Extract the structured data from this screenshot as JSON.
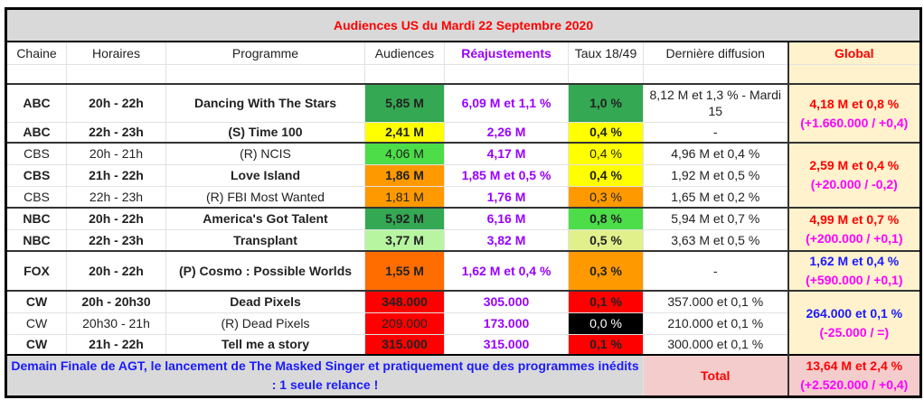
{
  "title": "Audiences US du Mardi 22 Septembre 2020",
  "headers": {
    "chaine": "Chaine",
    "horaires": "Horaires",
    "programme": "Programme",
    "audiences": "Audiences",
    "reajustements": "Réajustements",
    "taux": "Taux 18/49",
    "derniere": "Dernière diffusion",
    "global": "Global"
  },
  "rows": [
    {
      "chaine": "ABC",
      "horaires": "20h - 22h",
      "programme": "Dancing With The Stars",
      "audience": "5,85 M",
      "reajust": "6,09 M et 1,1 %",
      "taux": "1,0 %",
      "derniere": "8,12 M et 1,3 % - Mardi 15",
      "bold": true,
      "aud_color": "#34a853",
      "taux_color": "#34a853"
    },
    {
      "chaine": "ABC",
      "horaires": "22h - 23h",
      "programme": "(S) Time 100",
      "audience": "2,41 M",
      "reajust": "2,26 M",
      "taux": "0,4 %",
      "derniere": "-",
      "bold": true,
      "aud_color": "#ffff00",
      "taux_color": "#ffff00"
    },
    {
      "chaine": "CBS",
      "horaires": "20h - 21h",
      "programme": "(R) NCIS",
      "audience": "4,06 M",
      "reajust": "4,17 M",
      "taux": "0,4 %",
      "derniere": "4,96 M et 0,4 %",
      "bold": false,
      "aud_color": "#4cdd48",
      "taux_color": "#ffff00"
    },
    {
      "chaine": "CBS",
      "horaires": "21h - 22h",
      "programme": "Love Island",
      "audience": "1,86 M",
      "reajust": "1,85 M et 0,5 %",
      "taux": "0,4 %",
      "derniere": "1,92 M et 0,5 %",
      "bold": true,
      "aud_color": "#ff9900",
      "taux_color": "#ffff00"
    },
    {
      "chaine": "CBS",
      "horaires": "22h - 23h",
      "programme": "(R) FBI Most Wanted",
      "audience": "1,81 M",
      "reajust": "1,76 M",
      "taux": "0,3 %",
      "derniere": "1,65 M et 0,2 %",
      "bold": false,
      "aud_color": "#ff9900",
      "taux_color": "#ff9900"
    },
    {
      "chaine": "NBC",
      "horaires": "20h - 22h",
      "programme": "America's Got Talent",
      "audience": "5,92 M",
      "reajust": "6,16 M",
      "taux": "0,8 %",
      "derniere": "5,94 M et 0,7 %",
      "bold": true,
      "aud_color": "#34a853",
      "taux_color": "#4cdd48"
    },
    {
      "chaine": "NBC",
      "horaires": "22h - 23h",
      "programme": "Transplant",
      "audience": "3,77 M",
      "reajust": "3,82 M",
      "taux": "0,5 %",
      "derniere": "3,63 M et 0,5 %",
      "bold": true,
      "aud_color": "#b7f5a0",
      "taux_color": "#e2f08c"
    },
    {
      "chaine": "FOX",
      "horaires": "20h - 22h",
      "programme": "(P) Cosmo : Possible Worlds",
      "audience": "1,55 M",
      "reajust": "1,62 M et 0,4 %",
      "taux": "0,3 %",
      "derniere": "-",
      "bold": true,
      "aud_color": "#ff6d01",
      "taux_color": "#ff9900"
    },
    {
      "chaine": "CW",
      "horaires": "20h - 20h30",
      "programme": "Dead Pixels",
      "audience": "348.000",
      "reajust": "305.000",
      "taux": "0,1 %",
      "derniere": "357.000 et 0,1 %",
      "bold": true,
      "aud_color": "#ff0000",
      "taux_color": "#ff0000"
    },
    {
      "chaine": "CW",
      "horaires": "20h30 - 21h",
      "programme": "(R) Dead Pixels",
      "audience": "209.000",
      "reajust": "173.000",
      "taux": "0,0 %",
      "derniere": "210.000 et 0,1 %",
      "bold": false,
      "aud_color": "#ff0000",
      "taux_color": "#000000",
      "taux_text_color": "#ffffff"
    },
    {
      "chaine": "CW",
      "horaires": "21h - 22h",
      "programme": "Tell me a story",
      "audience": "315.000",
      "reajust": "315.000",
      "taux": "0,1 %",
      "derniere": "300.000 et 0,1 %",
      "bold": true,
      "aud_color": "#ff0000",
      "taux_color": "#ff0000"
    }
  ],
  "globals": [
    {
      "start": 0,
      "span": 2,
      "value": "4,18 M et 0,8 %",
      "delta": "(+1.660.000 / +0,4)",
      "color": "#ff0000"
    },
    {
      "start": 2,
      "span": 3,
      "value": "2,59 M et 0,4 %",
      "delta": "(+20.000 / -0,2)",
      "color": "#ff0000"
    },
    {
      "start": 5,
      "span": 2,
      "value": "4,99 M et 0,7 %",
      "delta": "(+200.000 / +0,1)",
      "color": "#ff0000"
    },
    {
      "start": 7,
      "span": 1,
      "value": "1,62 M et 0,4 %",
      "delta": "(+590.000 / +0,1)",
      "color": "#1a1aff"
    },
    {
      "start": 8,
      "span": 3,
      "value": "264.000 et 0,1 %",
      "delta": "(-25.000 / =)",
      "color": "#1a1aff"
    }
  ],
  "footer": {
    "message": "Demain Finale de AGT, le lancement de The Masked Singer et pratiquement que des programmes inédits : 1 seule relance !",
    "total_label": "Total",
    "total_value": "13,64 M et 2,4 %",
    "total_delta": "(+2.520.000 / +0,4)"
  }
}
